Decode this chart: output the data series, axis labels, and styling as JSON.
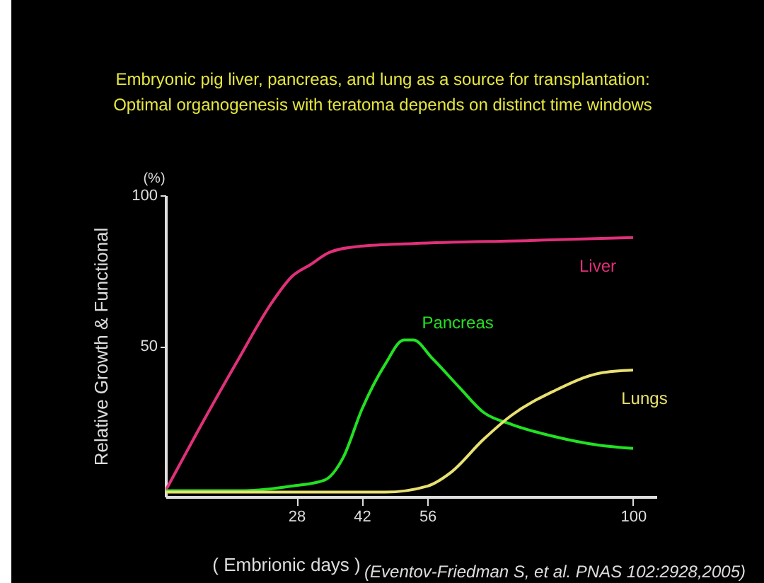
{
  "chart_data": {
    "type": "line",
    "title": "Embryonic pig liver, pancreas, and lung as a source for transplantation:",
    "subtitle": "Optimal organogenesis with teratoma depends on distinct time windows",
    "xlabel": "( Embrionic days )",
    "ylabel": "Relative Growth & Functional",
    "annotations": [
      "(%)",
      "(Eventov-Friedman S, et al. PNAS 102:2928,2005)"
    ],
    "xlim": [
      0,
      105
    ],
    "xticks": [
      28,
      42,
      56,
      100
    ],
    "ylim": [
      0,
      100
    ],
    "yticks": [
      50,
      100
    ],
    "grid": false,
    "legend": false,
    "marker": "none",
    "line_style": "solid",
    "series": [
      {
        "name": "Liver",
        "color": "#e0307a",
        "x": [
          0,
          7,
          15,
          23,
          27,
          31,
          35,
          41,
          53,
          78,
          100
        ],
        "values": [
          2,
          22,
          44,
          65,
          73,
          77,
          81,
          83,
          84,
          85,
          86
        ]
      },
      {
        "name": "Pancreas",
        "color": "#22e022",
        "x": [
          0,
          17,
          27,
          34,
          38,
          42,
          47,
          51,
          53,
          57,
          63,
          68,
          74,
          83,
          93,
          100
        ],
        "values": [
          2,
          2,
          3.5,
          5.5,
          13,
          29,
          44,
          52,
          52,
          46,
          36,
          28,
          24,
          20,
          17,
          16
        ]
      },
      {
        "name": "Lungs",
        "color": "#e8e070",
        "x": [
          0,
          47,
          56,
          61,
          68,
          74,
          83,
          93,
          100
        ],
        "values": [
          1.5,
          1.5,
          3.5,
          8,
          19,
          27,
          35,
          41,
          42
        ]
      }
    ]
  }
}
